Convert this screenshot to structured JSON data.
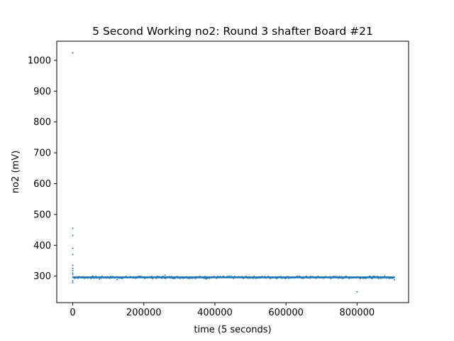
{
  "chart_data": {
    "type": "scatter",
    "title": "5 Second Working no2: Round 3 shafter Board #21",
    "xlabel": "time (5 seconds)",
    "ylabel": "no2 (mV)",
    "xlim": [
      -45000,
      945000
    ],
    "ylim": [
      214,
      1062
    ],
    "x_ticks": [
      0,
      200000,
      400000,
      600000,
      800000
    ],
    "x_tick_labels": [
      "0",
      "200000",
      "400000",
      "600000",
      "800000"
    ],
    "y_ticks": [
      300,
      400,
      500,
      600,
      700,
      800,
      900,
      1000
    ],
    "y_tick_labels": [
      "300",
      "400",
      "500",
      "600",
      "700",
      "800",
      "900",
      "1000"
    ],
    "grid": false,
    "legend": "none",
    "marker_color": "#1f77b4",
    "series": [
      {
        "baseline_band": {
          "x_start": 0,
          "x_end": 905000,
          "y_center": 296,
          "y_spread": 3
        },
        "points": [
          {
            "x": 0,
            "y": 1024
          },
          {
            "x": 0,
            "y": 455
          },
          {
            "x": 0,
            "y": 432
          },
          {
            "x": 0,
            "y": 390
          },
          {
            "x": 0,
            "y": 370
          },
          {
            "x": 0,
            "y": 335
          },
          {
            "x": 0,
            "y": 325
          },
          {
            "x": 0,
            "y": 318
          },
          {
            "x": 0,
            "y": 310
          },
          {
            "x": 0,
            "y": 305
          },
          {
            "x": 0,
            "y": 285
          },
          {
            "x": 0,
            "y": 279
          },
          {
            "x": 800000,
            "y": 249
          },
          {
            "x": 260000,
            "y": 303
          },
          {
            "x": 75000,
            "y": 290
          },
          {
            "x": 125000,
            "y": 289
          },
          {
            "x": 375000,
            "y": 291
          },
          {
            "x": 905000,
            "y": 288
          }
        ]
      }
    ]
  }
}
